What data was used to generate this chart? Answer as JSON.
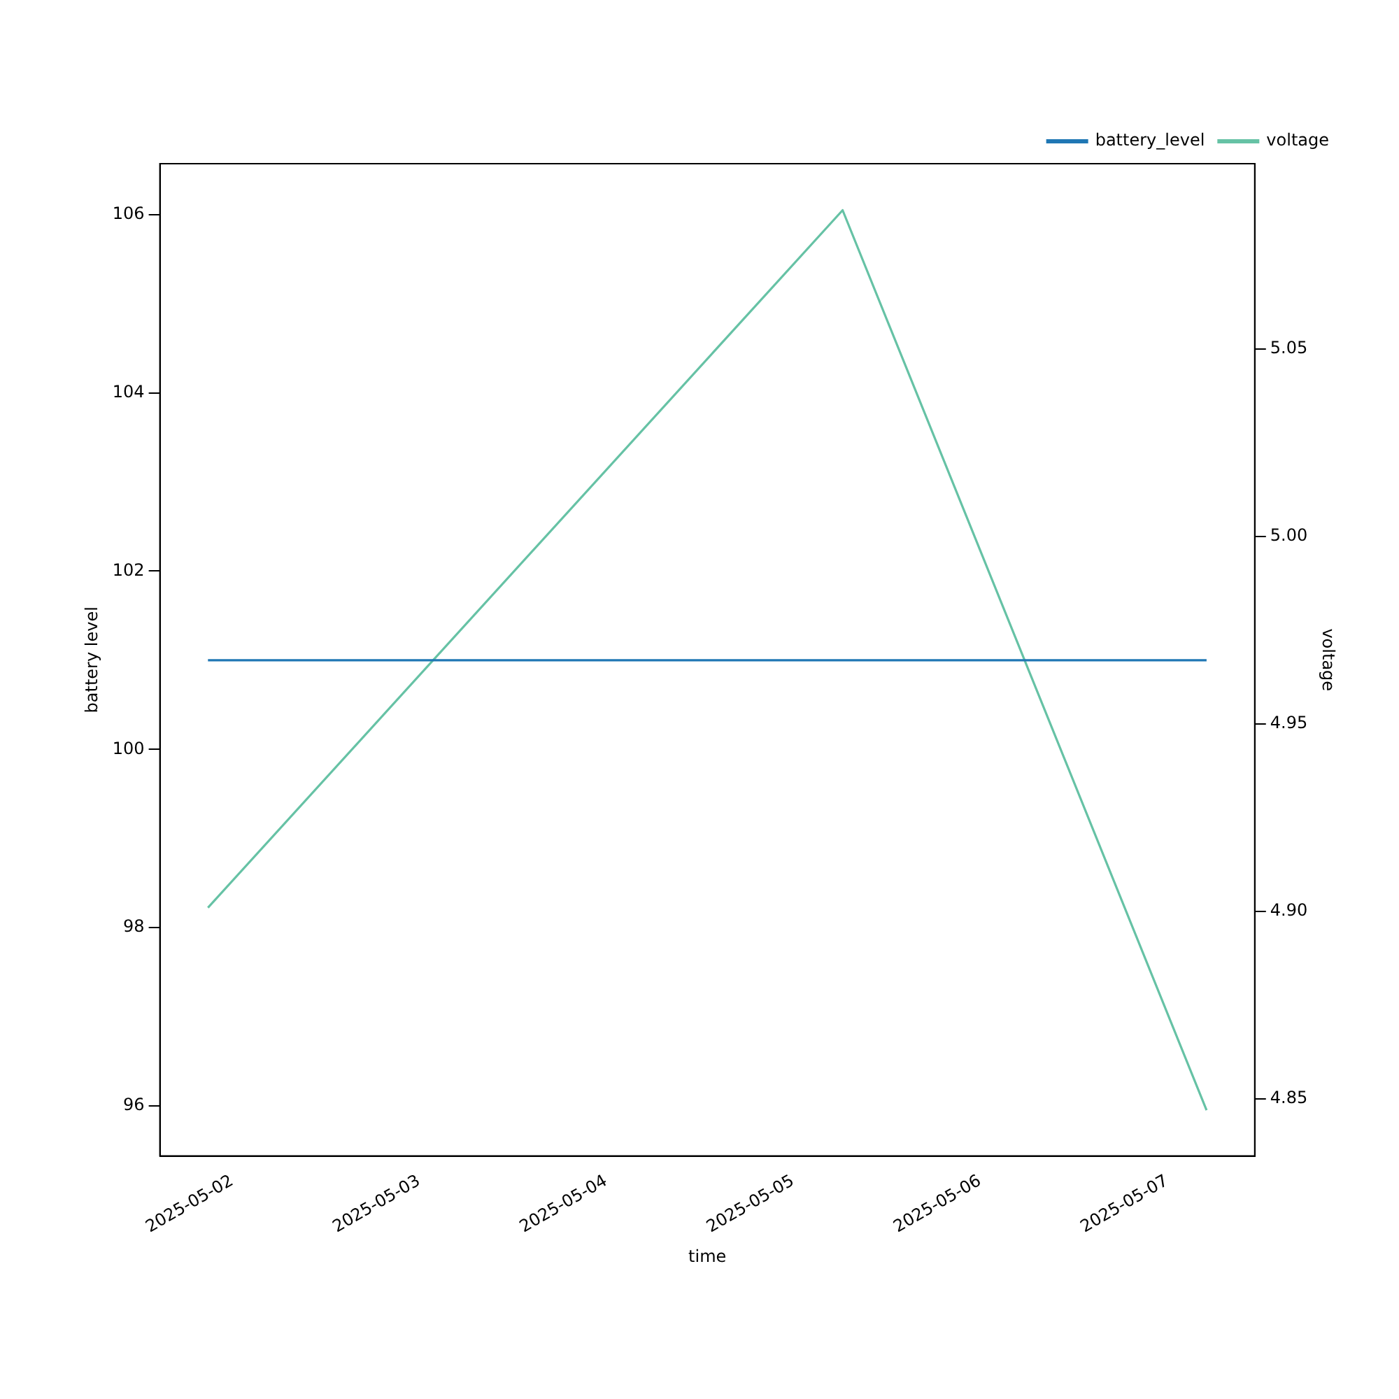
{
  "chart_data": {
    "type": "line",
    "xlabel": "time",
    "ylabel": "battery level",
    "y2label": "voltage",
    "x": [
      "2025-05-01T20:54",
      "2025-05-05T06:22",
      "2025-05-07T05:05"
    ],
    "series": [
      {
        "name": "battery_level",
        "color": "#1f77b4",
        "values": [
          101,
          101,
          101
        ]
      },
      {
        "name": "voltage",
        "color": "#66c2a5",
        "values": [
          4.901,
          5.087,
          4.847
        ],
        "axis": "y2"
      }
    ],
    "xlim": [
      "2025-05-01T14:44",
      "2025-05-07T11:16"
    ],
    "xticks": [
      "2025-05-02",
      "2025-05-03",
      "2025-05-04",
      "2025-05-05",
      "2025-05-06",
      "2025-05-07"
    ],
    "ylim": [
      95.44,
      106.57
    ],
    "yticks": [
      96,
      98,
      100,
      102,
      104,
      106
    ],
    "y2lim": [
      4.8348,
      5.0994
    ],
    "y2ticks": [
      4.85,
      {
        "value": 4.9,
        "label": "4.90"
      },
      4.95,
      {
        "value": 5,
        "label": "5.00"
      },
      5.05
    ],
    "legend": "top right",
    "grid": false,
    "marker": "none",
    "line_style": "solid"
  }
}
